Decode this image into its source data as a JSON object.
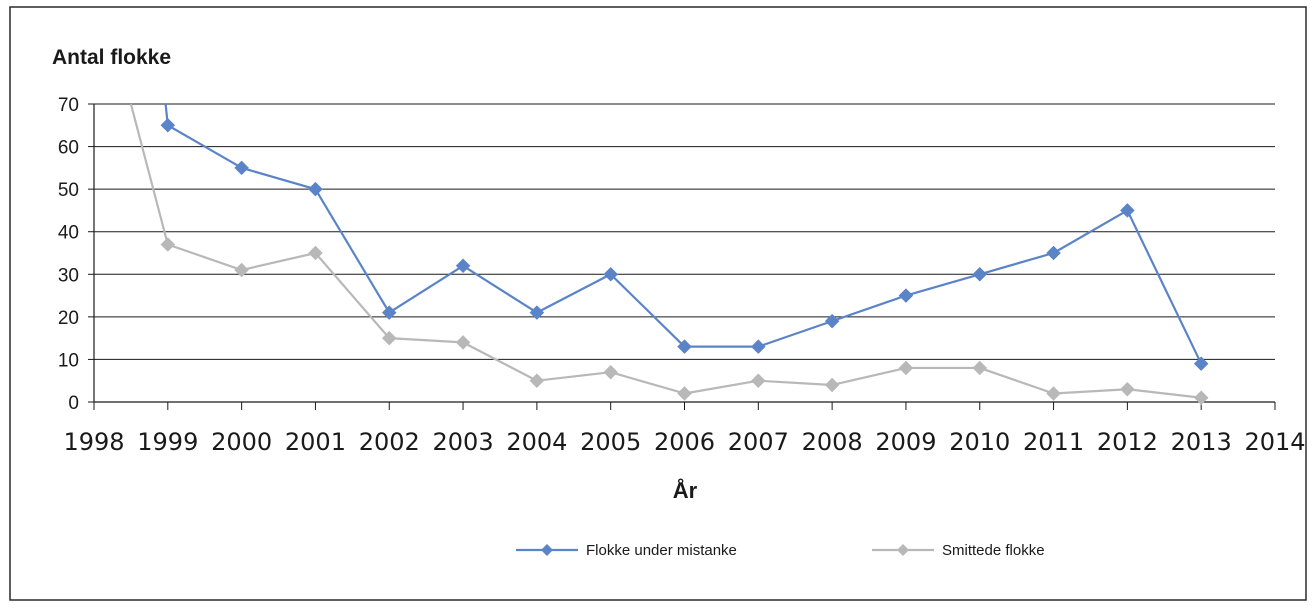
{
  "chart_data": {
    "type": "line",
    "ylabel": "Antal flokke",
    "xlabel": "År",
    "xlim": [
      1998,
      2014
    ],
    "ylim": [
      0,
      70
    ],
    "xticks": [
      1998,
      1999,
      2000,
      2001,
      2002,
      2003,
      2004,
      2005,
      2006,
      2007,
      2008,
      2009,
      2010,
      2011,
      2012,
      2013,
      2014
    ],
    "yticks": [
      0,
      10,
      20,
      30,
      40,
      50,
      60,
      70
    ],
    "grid": "horizontal",
    "legend_position": "bottom",
    "series": [
      {
        "name": "Flokke under mistanke",
        "color": "#5b84c8",
        "marker": "diamond",
        "x": [
          1999,
          2000,
          2001,
          2002,
          2003,
          2004,
          2005,
          2006,
          2007,
          2008,
          2009,
          2010,
          2011,
          2012,
          2013
        ],
        "values": [
          65,
          55,
          50,
          21,
          32,
          21,
          30,
          13,
          13,
          19,
          25,
          30,
          35,
          45,
          9
        ],
        "clipped_start": {
          "x": 1998.97,
          "y": 70
        }
      },
      {
        "name": "Smittede flokke",
        "color": "#b8b8b8",
        "marker": "diamond",
        "x": [
          1999,
          2000,
          2001,
          2002,
          2003,
          2004,
          2005,
          2006,
          2007,
          2008,
          2009,
          2010,
          2011,
          2012,
          2013
        ],
        "values": [
          37,
          31,
          35,
          15,
          14,
          5,
          7,
          2,
          5,
          4,
          8,
          8,
          2,
          3,
          1
        ],
        "clipped_start": {
          "x": 1998.5,
          "y": 70
        }
      }
    ]
  }
}
